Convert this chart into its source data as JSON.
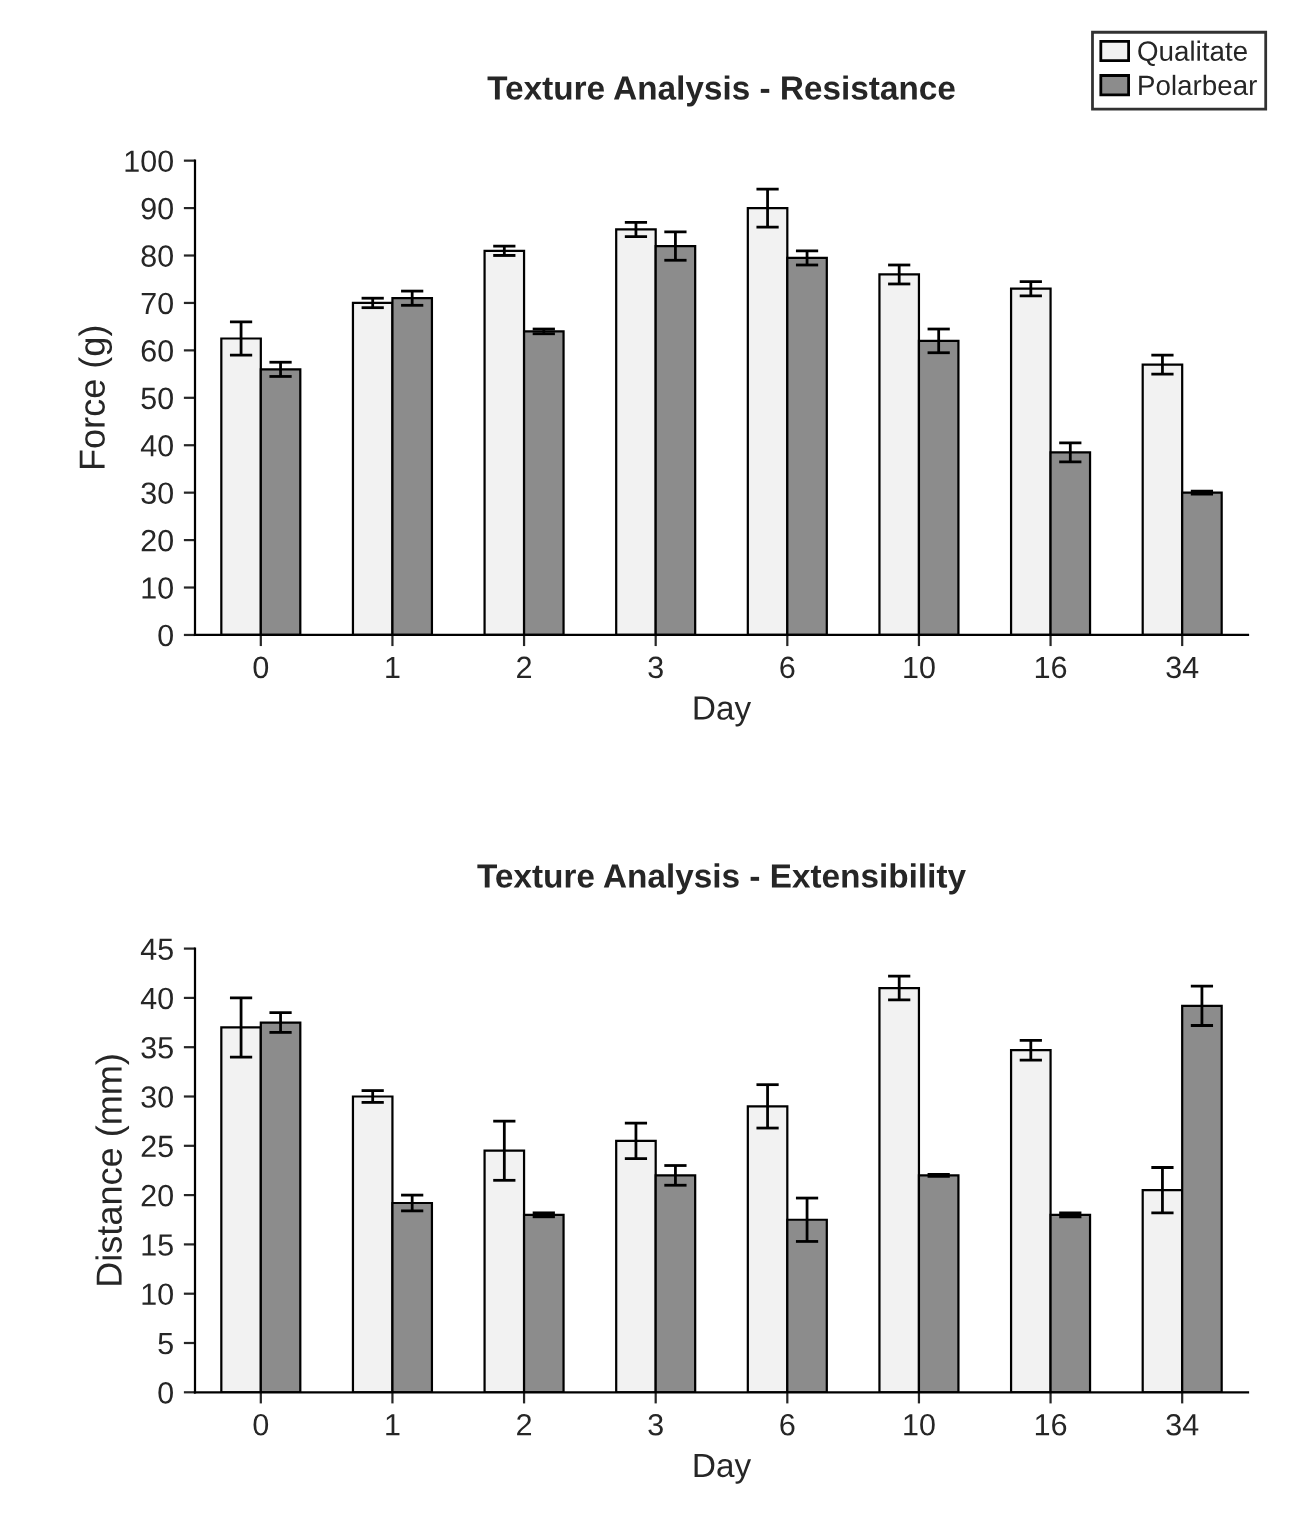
{
  "chart_data": [
    {
      "type": "bar",
      "title": "Texture Analysis - Resistance",
      "xlabel": "Day",
      "ylabel": "Force (g)",
      "categories": [
        "0",
        "1",
        "2",
        "3",
        "6",
        "10",
        "16",
        "34"
      ],
      "series": [
        {
          "name": "Qualitate",
          "color": "#f2f2f2",
          "values": [
            62.5,
            70,
            81,
            85.5,
            90,
            76,
            73,
            57
          ],
          "errors": [
            3.5,
            1,
            1,
            1.5,
            4,
            2,
            1.5,
            2
          ]
        },
        {
          "name": "Polarbear",
          "color": "#8c8c8c",
          "values": [
            56,
            71,
            64,
            82,
            79.5,
            62,
            38.5,
            30
          ],
          "errors": [
            1.5,
            1.5,
            0.5,
            3,
            1.5,
            2.5,
            2,
            0.3
          ]
        }
      ],
      "ylim": [
        0,
        100
      ],
      "yticks": [
        0,
        10,
        20,
        30,
        40,
        50,
        60,
        70,
        80,
        90,
        100
      ],
      "grid": false,
      "legend": "top right"
    },
    {
      "type": "bar",
      "title": "Texture Analysis - Extensibility",
      "xlabel": "Day",
      "ylabel": "Distance (mm)",
      "categories": [
        "0",
        "1",
        "2",
        "3",
        "6",
        "10",
        "16",
        "34"
      ],
      "series": [
        {
          "color": "#f2f2f2",
          "values": [
            37,
            30,
            24.5,
            25.5,
            29,
            41,
            34.7,
            20.5
          ],
          "errors": [
            3,
            0.6,
            3,
            1.8,
            2.2,
            1.2,
            1,
            2.3
          ]
        },
        {
          "color": "#8c8c8c",
          "values": [
            37.5,
            19.2,
            18,
            22,
            17.5,
            22,
            18,
            39.2
          ],
          "errors": [
            1,
            0.8,
            0.2,
            1,
            2.2,
            0.1,
            0.2,
            2
          ]
        }
      ],
      "ylim": [
        0,
        45
      ],
      "yticks": [
        0,
        5,
        10,
        15,
        20,
        25,
        30,
        35,
        40,
        45
      ],
      "grid": false,
      "legend": false
    }
  ]
}
